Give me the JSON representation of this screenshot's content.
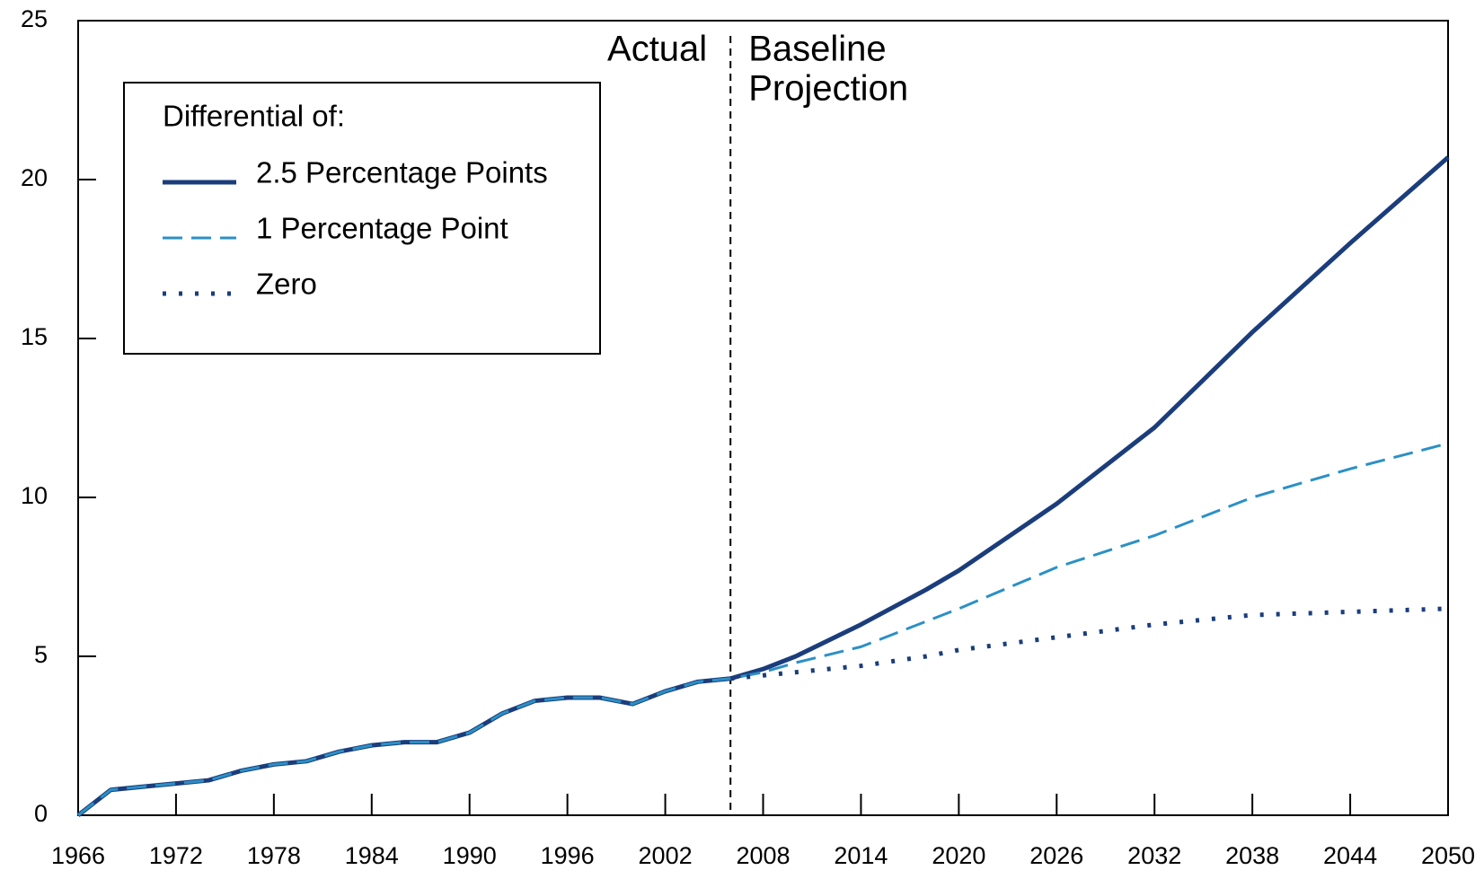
{
  "chart_data": {
    "type": "line",
    "annotations": [
      "Actual",
      "Baseline",
      "Projection"
    ],
    "divider_x": 2006,
    "legend_title": "Differential of:",
    "legend": "upper left",
    "x": [
      1966,
      1967,
      1968,
      1970,
      1972,
      1974,
      1976,
      1978,
      1980,
      1982,
      1984,
      1986,
      1988,
      1990,
      1992,
      1994,
      1996,
      1998,
      2000,
      2002,
      2004,
      2006,
      2008,
      2010,
      2014,
      2018,
      2020,
      2026,
      2032,
      2038,
      2044,
      2050
    ],
    "series": [
      {
        "name": "2.5 Percentage Points",
        "color": "#1b3d7c",
        "style": "solid",
        "values": [
          0,
          0.4,
          0.8,
          0.9,
          1.0,
          1.1,
          1.4,
          1.6,
          1.7,
          2.0,
          2.2,
          2.3,
          2.3,
          2.6,
          3.2,
          3.6,
          3.7,
          3.7,
          3.5,
          3.9,
          4.2,
          4.3,
          4.6,
          5.0,
          6.0,
          7.1,
          7.7,
          9.8,
          12.2,
          15.2,
          18.0,
          20.7
        ]
      },
      {
        "name": "1 Percentage Point",
        "color": "#2b90c6",
        "style": "dashed",
        "values": [
          0,
          0.4,
          0.8,
          0.9,
          1.0,
          1.1,
          1.4,
          1.6,
          1.7,
          2.0,
          2.2,
          2.3,
          2.3,
          2.6,
          3.2,
          3.6,
          3.7,
          3.7,
          3.5,
          3.9,
          4.2,
          4.3,
          4.5,
          4.8,
          5.3,
          6.1,
          6.5,
          7.8,
          8.8,
          10.0,
          10.9,
          11.7
        ]
      },
      {
        "name": "Zero",
        "color": "#1b3d7c",
        "style": "dotted",
        "values": [
          null,
          null,
          null,
          null,
          null,
          null,
          null,
          null,
          null,
          null,
          null,
          null,
          null,
          null,
          null,
          null,
          null,
          null,
          null,
          null,
          null,
          4.3,
          4.4,
          4.5,
          4.7,
          5.0,
          5.2,
          5.6,
          6.0,
          6.3,
          6.4,
          6.5
        ]
      }
    ],
    "xlim": [
      1966,
      2050
    ],
    "xticks": [
      1966,
      1972,
      1978,
      1984,
      1990,
      1996,
      2002,
      2008,
      2014,
      2020,
      2026,
      2032,
      2038,
      2044,
      2050
    ],
    "ylim": [
      0,
      25
    ],
    "yticks": [
      0,
      5,
      10,
      15,
      20,
      25
    ],
    "grid": false
  }
}
